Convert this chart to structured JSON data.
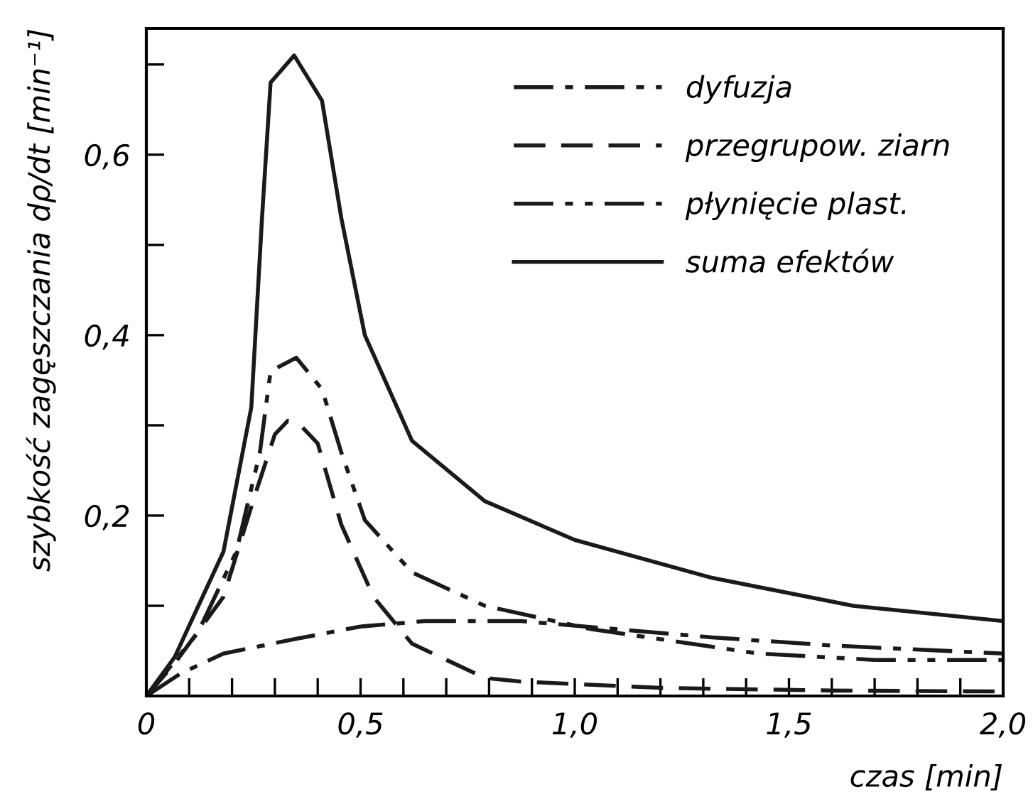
{
  "chart_data": {
    "type": "line",
    "xlabel": "czas [min]",
    "ylabel": "szybkość zagęszczania dρ/dt [min⁻¹]",
    "xlim": [
      0,
      2.0
    ],
    "ylim": [
      0,
      0.74
    ],
    "xticks": [
      {
        "value": 0,
        "label": "0"
      },
      {
        "value": 0.1,
        "label": null
      },
      {
        "value": 0.2,
        "label": null
      },
      {
        "value": 0.3,
        "label": null
      },
      {
        "value": 0.4,
        "label": null
      },
      {
        "value": 0.5,
        "label": "0,5"
      },
      {
        "value": 0.6,
        "label": null
      },
      {
        "value": 0.7,
        "label": null
      },
      {
        "value": 0.8,
        "label": null
      },
      {
        "value": 0.9,
        "label": null
      },
      {
        "value": 1.0,
        "label": "1,0"
      },
      {
        "value": 1.1,
        "label": null
      },
      {
        "value": 1.2,
        "label": null
      },
      {
        "value": 1.3,
        "label": null
      },
      {
        "value": 1.4,
        "label": null
      },
      {
        "value": 1.5,
        "label": "1,5"
      },
      {
        "value": 1.6,
        "label": null
      },
      {
        "value": 1.7,
        "label": null
      },
      {
        "value": 1.8,
        "label": null
      },
      {
        "value": 1.9,
        "label": null
      },
      {
        "value": 2.0,
        "label": "2,0"
      }
    ],
    "yticks": [
      {
        "value": 0.1,
        "label": null
      },
      {
        "value": 0.2,
        "label": "0,2"
      },
      {
        "value": 0.3,
        "label": null
      },
      {
        "value": 0.4,
        "label": "0,4"
      },
      {
        "value": 0.5,
        "label": null
      },
      {
        "value": 0.6,
        "label": "0,6"
      },
      {
        "value": 0.7,
        "label": null
      }
    ],
    "grid": false,
    "legend": "top right",
    "marker": "none",
    "series": [
      {
        "name": "dyfuzja",
        "color": "#1a1a1a",
        "line_style": "dashdot",
        "x": [
          0,
          0.08,
          0.18,
          0.345,
          0.5,
          0.65,
          0.875,
          1.1,
          1.32,
          1.6,
          2.0
        ],
        "values": [
          0,
          0.025,
          0.047,
          0.063,
          0.077,
          0.083,
          0.083,
          0.074,
          0.065,
          0.056,
          0.047
        ]
      },
      {
        "name": "przegrupow. ziarn",
        "color": "#1a1a1a",
        "line_style": "dashed",
        "x": [
          0,
          0.066,
          0.18,
          0.255,
          0.3,
          0.33,
          0.36,
          0.4,
          0.455,
          0.53,
          0.62,
          0.79,
          0.875,
          1.2,
          1.6,
          2.0
        ],
        "values": [
          0,
          0.036,
          0.11,
          0.225,
          0.29,
          0.305,
          0.3,
          0.28,
          0.19,
          0.11,
          0.058,
          0.02,
          0.016,
          0.009,
          0.006,
          0.005
        ]
      },
      {
        "name": "płynięcie plast.",
        "color": "#1a1a1a",
        "line_style": "dashdotdot",
        "x": [
          0,
          0.12,
          0.21,
          0.265,
          0.29,
          0.35,
          0.41,
          0.455,
          0.51,
          0.62,
          0.79,
          1.04,
          1.43,
          1.7,
          2.0
        ],
        "values": [
          0,
          0.07,
          0.16,
          0.27,
          0.36,
          0.375,
          0.34,
          0.27,
          0.195,
          0.137,
          0.1,
          0.074,
          0.047,
          0.04,
          0.04
        ]
      },
      {
        "name": "suma efektów",
        "color": "#1a1a1a",
        "line_style": "solid",
        "x": [
          0,
          0.066,
          0.18,
          0.245,
          0.27,
          0.29,
          0.345,
          0.41,
          0.455,
          0.51,
          0.62,
          0.79,
          1.0,
          1.32,
          1.65,
          2.0
        ],
        "values": [
          0,
          0.043,
          0.16,
          0.32,
          0.53,
          0.68,
          0.71,
          0.66,
          0.53,
          0.4,
          0.283,
          0.216,
          0.173,
          0.131,
          0.1,
          0.083
        ]
      }
    ]
  }
}
